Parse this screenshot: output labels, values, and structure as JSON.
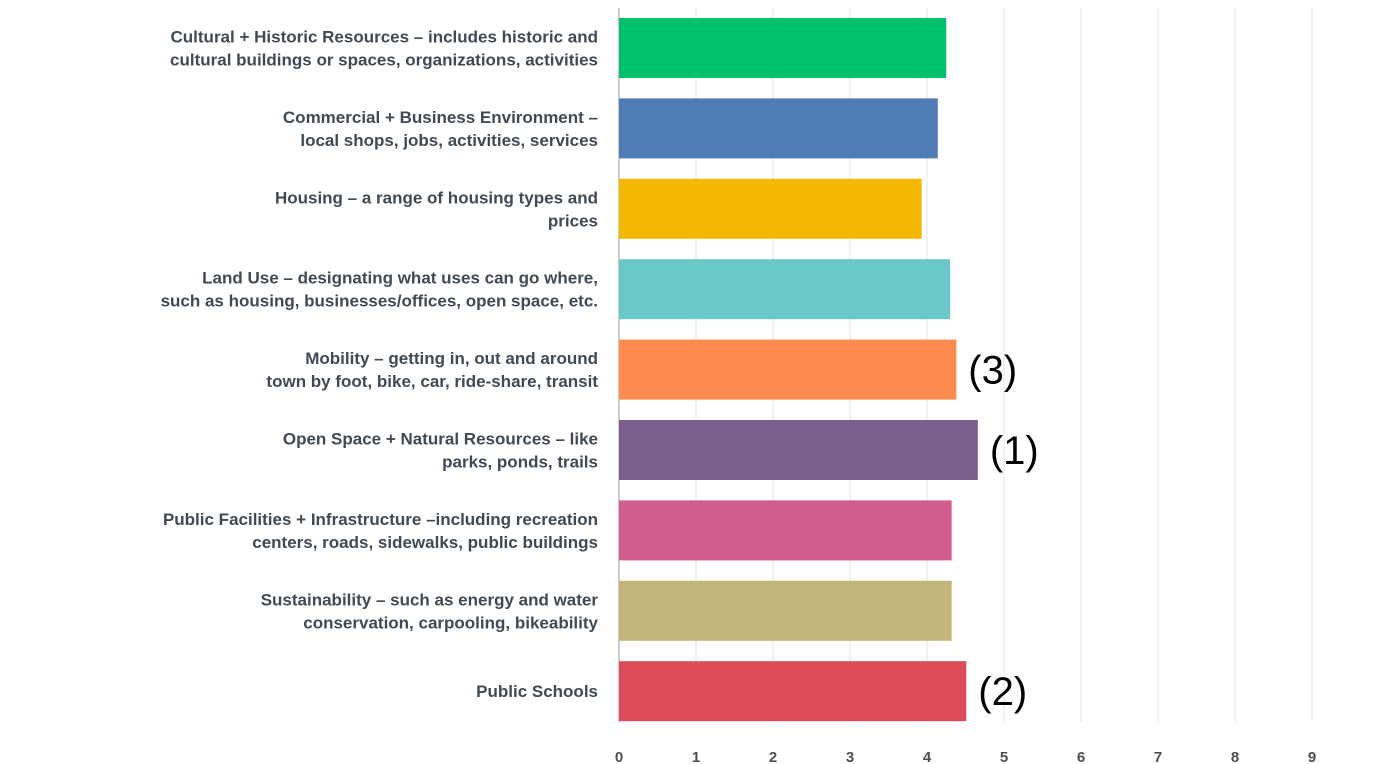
{
  "chart_data": {
    "type": "barh",
    "categories": [
      "Cultural + Historic Resources – includes historic and\ncultural buildings or spaces, organizations, activities",
      "Commercial + Business Environment –\nlocal shops, jobs, activities, services",
      "Housing – a range of housing types and\nprices",
      "Land Use – designating what uses can go where,\nsuch as housing, businesses/offices, open space, etc.",
      "Mobility – getting in, out and around\ntown by foot, bike, car, ride-share, transit",
      "Open Space + Natural Resources – like\nparks, ponds, trails",
      "Public Facilities + Infrastructure –including recreation\ncenters, roads, sidewalks, public buildings",
      "Sustainability – such as energy and water\nconservation, carpooling, bikeability",
      "Public Schools"
    ],
    "values": [
      4.25,
      4.14,
      3.93,
      4.3,
      4.38,
      4.66,
      4.32,
      4.32,
      4.51
    ],
    "colors": [
      "#00bf6f",
      "#507cb6",
      "#f5b800",
      "#6bc8c8",
      "#fd8b4f",
      "#7a5e8c",
      "#d15d8e",
      "#c4b57c",
      "#db4b59"
    ],
    "xlim": [
      0,
      10
    ],
    "xticks": [
      0,
      1,
      2,
      3,
      4,
      5,
      6,
      7,
      8,
      9,
      10
    ],
    "grid": true,
    "annotations": [
      {
        "index": 4,
        "text": "(3)"
      },
      {
        "index": 5,
        "text": "(1)"
      },
      {
        "index": 8,
        "text": "(2)"
      }
    ]
  }
}
